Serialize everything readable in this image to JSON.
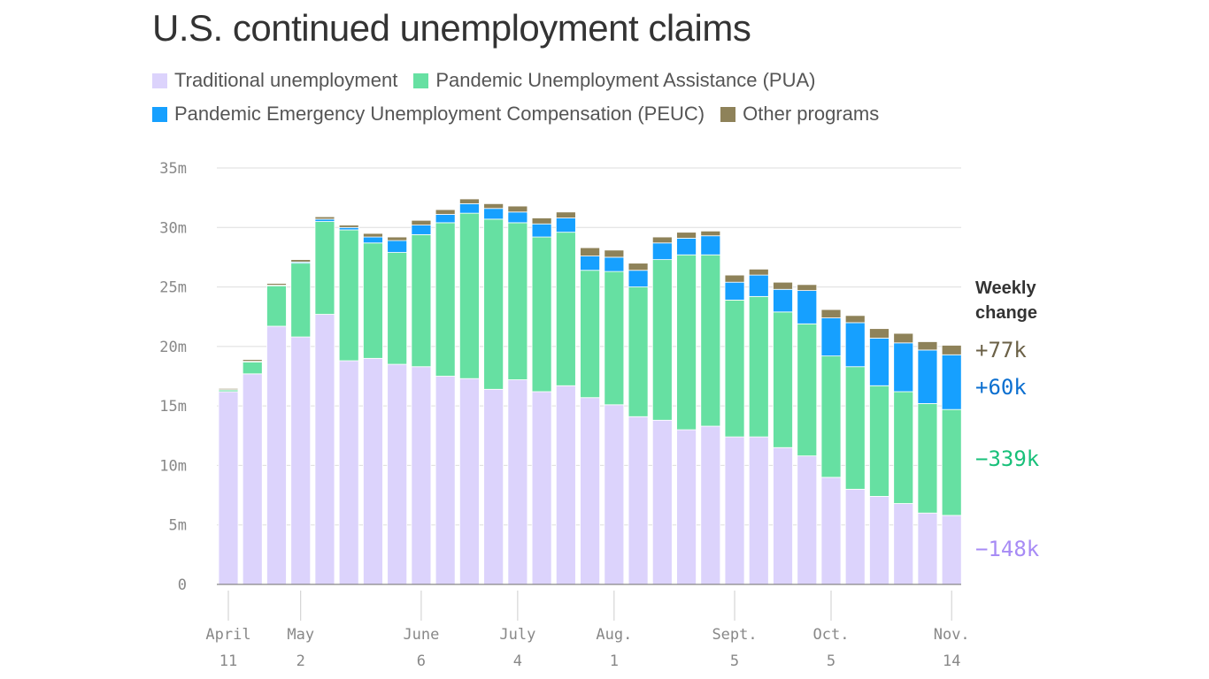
{
  "chart_data": {
    "type": "bar",
    "stacked": true,
    "title": "U.S. continued unemployment claims",
    "ylim": [
      0,
      35
    ],
    "y_ticks": [
      "0",
      "5m",
      "10m",
      "15m",
      "20m",
      "25m",
      "30m",
      "35m"
    ],
    "grid": true,
    "legend_placement": "top",
    "x_ticks": [
      {
        "index": 0,
        "month": "April",
        "day": "11"
      },
      {
        "index": 3,
        "month": "May",
        "day": "2"
      },
      {
        "index": 8,
        "month": "June",
        "day": "6"
      },
      {
        "index": 12,
        "month": "July",
        "day": "4"
      },
      {
        "index": 16,
        "month": "Aug.",
        "day": "1"
      },
      {
        "index": 21,
        "month": "Sept.",
        "day": "5"
      },
      {
        "index": 25,
        "month": "Oct.",
        "day": "5"
      },
      {
        "index": 30,
        "month": "Nov.",
        "day": "14"
      }
    ],
    "series": [
      {
        "name": "Traditional unemployment",
        "color": "#dcd3fc",
        "values": [
          16.2,
          17.7,
          21.7,
          20.8,
          22.7,
          18.8,
          19.0,
          18.5,
          18.3,
          17.5,
          17.3,
          16.4,
          17.2,
          16.2,
          16.7,
          15.7,
          15.1,
          14.1,
          13.8,
          13.0,
          13.3,
          12.4,
          12.4,
          11.5,
          10.8,
          9.0,
          8.0,
          7.4,
          6.8,
          6.0,
          5.8
        ]
      },
      {
        "name": "Pandemic Unemployment Assistance (PUA)",
        "color": "#66e0a2",
        "values": [
          0.15,
          1.0,
          3.4,
          6.2,
          7.8,
          11.0,
          9.7,
          9.4,
          11.1,
          12.9,
          13.9,
          14.3,
          13.2,
          13.0,
          12.9,
          10.7,
          11.2,
          10.9,
          13.5,
          14.7,
          14.4,
          11.5,
          11.8,
          11.4,
          11.1,
          10.2,
          10.3,
          9.3,
          9.4,
          9.2,
          8.9
        ]
      },
      {
        "name": "Pandemic Emergency Unemployment Compensation (PEUC)",
        "color": "#16a0ff",
        "values": [
          0.02,
          0.05,
          0.05,
          0.1,
          0.2,
          0.2,
          0.5,
          1.0,
          0.8,
          0.7,
          0.8,
          0.9,
          0.9,
          1.1,
          1.2,
          1.2,
          1.2,
          1.4,
          1.4,
          1.4,
          1.6,
          1.5,
          1.8,
          1.9,
          2.8,
          3.2,
          3.7,
          4.0,
          4.1,
          4.5,
          4.6
        ]
      },
      {
        "name": "Other programs",
        "color": "#8e8259",
        "values": [
          0.1,
          0.15,
          0.15,
          0.2,
          0.2,
          0.2,
          0.3,
          0.3,
          0.4,
          0.4,
          0.4,
          0.4,
          0.5,
          0.5,
          0.5,
          0.7,
          0.6,
          0.6,
          0.5,
          0.5,
          0.4,
          0.6,
          0.5,
          0.6,
          0.5,
          0.7,
          0.6,
          0.8,
          0.8,
          0.7,
          0.8
        ]
      }
    ],
    "annotation": {
      "title": "Weekly change",
      "changes": [
        {
          "label": "+77k",
          "color": "#6b6147"
        },
        {
          "label": "+60k",
          "color": "#0b6fd0"
        },
        {
          "label": "−339k",
          "color": "#18c07a"
        },
        {
          "label": "−148k",
          "color": "#a78bf5"
        }
      ]
    }
  }
}
